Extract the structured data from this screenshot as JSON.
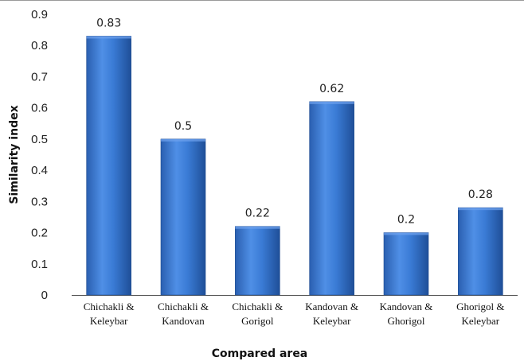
{
  "chart_data": {
    "type": "bar",
    "title": "",
    "xlabel": "Compared area",
    "ylabel": "Similarity index",
    "ylim": [
      0,
      0.9
    ],
    "yticks": [
      "0",
      "0.1",
      "0.2",
      "0.3",
      "0.4",
      "0.5",
      "0.6",
      "0.7",
      "0.8",
      "0.9"
    ],
    "categories": [
      [
        "Chichakli &",
        "Keleybar"
      ],
      [
        "Chichakli &",
        "Kandovan"
      ],
      [
        "Chichakli &",
        "Gorigol"
      ],
      [
        "Kandovan &",
        "Keleybar"
      ],
      [
        "Kandovan &",
        "Ghorigol"
      ],
      [
        "Ghorigol &",
        "Keleybar"
      ]
    ],
    "values": [
      0.83,
      0.5,
      0.22,
      0.62,
      0.2,
      0.28
    ],
    "data_labels": [
      "0.83",
      "0.5",
      "0.22",
      "0.62",
      "0.2",
      "0.28"
    ],
    "grid": false,
    "legend": "none",
    "bar_color": "#3a7bd5"
  }
}
